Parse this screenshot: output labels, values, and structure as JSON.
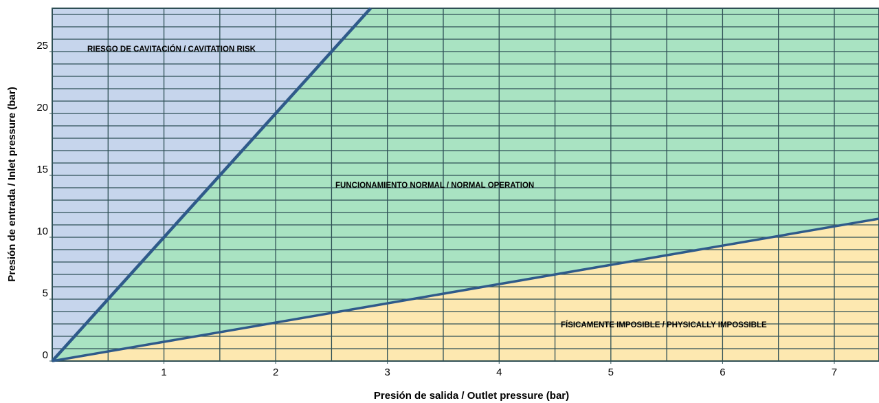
{
  "chart_data": {
    "type": "line",
    "x_label": "Presión de salida / Outlet pressure (bar)",
    "y_label": "Presión de entrada / Inlet pressure (bar)",
    "xlim": [
      0,
      7.4
    ],
    "ylim": [
      0,
      28.5
    ],
    "xticks": [
      1,
      2,
      3,
      4,
      5,
      6,
      7
    ],
    "yticks": [
      0,
      5,
      10,
      15,
      20,
      25
    ],
    "grid": true,
    "minor_grid": {
      "x": 0.5,
      "y": 1
    },
    "series": [
      {
        "color": "#2f5a8a",
        "x": [
          0,
          2.85
        ],
        "values": [
          0,
          28.5
        ]
      },
      {
        "color": "#2f5a8a",
        "x": [
          0,
          7.4
        ],
        "values": [
          0,
          11.5
        ]
      }
    ],
    "regions": [
      {
        "label": "RIESGO DE CAVITACIÓN / CAVITATION RISK",
        "color": "#c6d5ec"
      },
      {
        "label": "FUNCIONAMIENTO NORMAL / NORMAL OPERATION",
        "color": "#a9e3c2"
      },
      {
        "label": "FÍSICAMENTE IMPOSIBLE / PHYSICALLY IMPOSSIBLE",
        "color": "#fde8b0"
      }
    ]
  }
}
